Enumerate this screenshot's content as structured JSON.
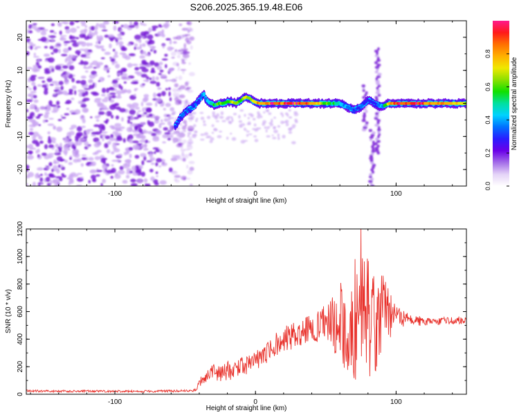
{
  "page_title": "S206.2025.365.19.48.E06",
  "colors": {
    "background": "#ffffff",
    "axis": "#000000",
    "snr_line": "#e8302a",
    "noise_strong": "#7a1fd6",
    "noise_light": "#c9a6f2"
  },
  "chart_data": [
    {
      "type": "heatmap",
      "title": "",
      "xlabel": "Height of straight line (km)",
      "ylabel": "Frequency (Hz)",
      "xlim": [
        -163,
        150
      ],
      "ylim": [
        -25,
        25
      ],
      "x_ticks": [
        -100,
        0,
        100
      ],
      "y_ticks": [
        -20,
        -10,
        0,
        10,
        20
      ],
      "x_tick_labels": [
        "-100",
        "0",
        "100"
      ],
      "y_tick_labels": [
        "-20",
        "-10",
        "0",
        "10",
        "20"
      ],
      "colorbar": {
        "label": "Normalized spectral amplitude",
        "range": [
          0,
          1
        ],
        "ticks": [
          0.0,
          0.2,
          0.4,
          0.6,
          0.8
        ],
        "tick_labels": [
          "0.0",
          "0.2",
          "0.4",
          "0.6",
          "0.8"
        ],
        "colormap": [
          "#ffffff",
          "#e4d3f7",
          "#a36ce8",
          "#6a00e8",
          "#2a1cff",
          "#0070ff",
          "#00d2ff",
          "#00e0a0",
          "#10e000",
          "#8ce000",
          "#f0e800",
          "#ffb000",
          "#ff7000",
          "#ff1a1a",
          "#ff1a8c"
        ]
      },
      "noise_region_x": [
        -163,
        -53
      ],
      "ridge": {
        "description": "dominant frequency track vs height",
        "x": [
          -57,
          -53,
          -48,
          -44,
          -40,
          -37,
          -35,
          -32,
          -29,
          -26,
          -23,
          -20,
          -17,
          -14,
          -10,
          -7,
          -4,
          -1,
          3,
          10,
          20,
          30,
          40,
          50,
          60,
          65,
          70,
          75,
          80,
          85,
          90,
          95,
          100,
          110,
          120,
          130,
          140,
          150
        ],
        "y": [
          -7,
          -4,
          -2,
          -1,
          1,
          3,
          1,
          0,
          -0.5,
          0,
          0,
          0.5,
          0.5,
          0,
          1,
          2,
          1.5,
          0.5,
          0,
          0,
          0,
          0,
          0,
          0,
          0,
          -1,
          -2,
          -1,
          1,
          0,
          -1,
          0,
          0,
          0,
          0,
          0,
          0,
          0
        ],
        "amplitude": [
          0.25,
          0.3,
          0.35,
          0.35,
          0.3,
          0.4,
          0.35,
          0.5,
          0.55,
          0.6,
          0.55,
          0.6,
          0.65,
          0.7,
          0.6,
          0.7,
          0.65,
          0.8,
          0.85,
          0.9,
          0.9,
          0.9,
          0.85,
          0.6,
          0.5,
          0.35,
          0.3,
          0.3,
          0.3,
          0.3,
          0.4,
          0.7,
          0.9,
          0.9,
          0.9,
          0.8,
          0.75,
          0.7
        ]
      },
      "spikes": [
        {
          "x": 83,
          "y_range": [
            -25,
            -8
          ]
        },
        {
          "x": 87,
          "y_range": [
            -15,
            17
          ]
        },
        {
          "x": 78,
          "y_range": [
            -8,
            6
          ]
        }
      ]
    },
    {
      "type": "line",
      "title": "",
      "xlabel": "Height of straight line (km)",
      "ylabel": "SNR (10 * v/v)",
      "xlim": [
        -163,
        150
      ],
      "ylim": [
        0,
        1200
      ],
      "x_ticks": [
        -100,
        0,
        100
      ],
      "y_ticks": [
        0,
        200,
        400,
        600,
        800,
        1000,
        1200
      ],
      "x_tick_labels": [
        "-100",
        "0",
        "100"
      ],
      "y_tick_labels": [
        "0",
        "200",
        "400",
        "600",
        "800",
        "1000",
        "1200"
      ],
      "series": [
        {
          "name": "SNR",
          "x": [
            -163,
            -150,
            -130,
            -110,
            -90,
            -70,
            -50,
            -42,
            -40,
            -35,
            -30,
            -25,
            -20,
            -15,
            -10,
            -5,
            0,
            5,
            10,
            15,
            20,
            25,
            30,
            35,
            40,
            45,
            50,
            55,
            60,
            65,
            70,
            75,
            80,
            85,
            90,
            95,
            100,
            110,
            120,
            130,
            140,
            150
          ],
          "y": [
            25,
            22,
            22,
            22,
            22,
            22,
            25,
            30,
            80,
            120,
            150,
            160,
            170,
            180,
            200,
            220,
            250,
            280,
            330,
            360,
            400,
            420,
            440,
            460,
            480,
            490,
            510,
            520,
            530,
            550,
            560,
            560,
            570,
            580,
            540,
            580,
            560,
            540,
            530,
            530,
            530,
            540
          ],
          "noise_amplitude": [
            8,
            8,
            8,
            8,
            8,
            8,
            8,
            10,
            40,
            60,
            70,
            70,
            70,
            70,
            70,
            70,
            70,
            80,
            90,
            90,
            90,
            100,
            100,
            100,
            100,
            120,
            150,
            200,
            300,
            380,
            450,
            500,
            480,
            420,
            350,
            200,
            80,
            40,
            35,
            30,
            30,
            30
          ],
          "peak": {
            "x": 75,
            "y": 1200
          }
        }
      ]
    }
  ]
}
